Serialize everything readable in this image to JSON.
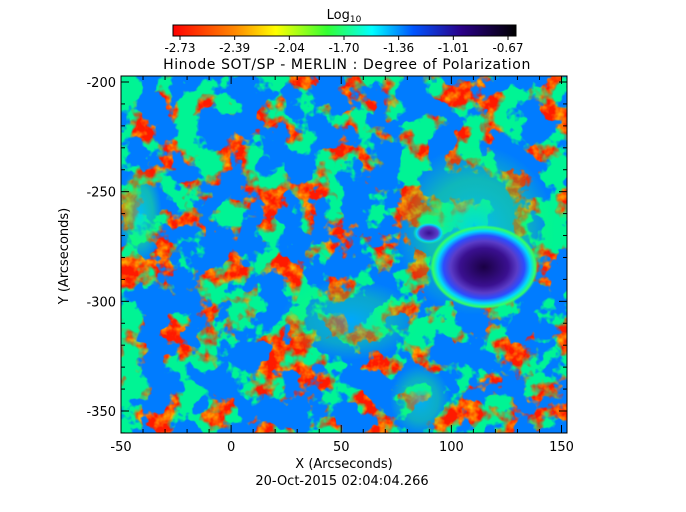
{
  "colorbar": {
    "label_base": "Log",
    "label_sub": "10",
    "ticks": [
      "-2.73",
      "-2.39",
      "-2.04",
      "-1.70",
      "-1.36",
      "-1.01",
      "-0.67"
    ],
    "colors": [
      "#ff0000",
      "#ffaa00",
      "#ffff00",
      "#66ff33",
      "#00ffff",
      "#0044ff",
      "#1a0066",
      "#000000"
    ]
  },
  "map": {
    "title": "Hinode SOT/SP - MERLIN : Degree of Polarization",
    "xlabel": "X (Arcseconds)",
    "ylabel": "Y (Arcseconds)",
    "xticks": [
      "-50",
      "0",
      "50",
      "100",
      "150"
    ],
    "yticks": [
      "-200",
      "-250",
      "-300",
      "-350"
    ],
    "timestamp": "20-Oct-2015 02:04:04.266"
  }
}
